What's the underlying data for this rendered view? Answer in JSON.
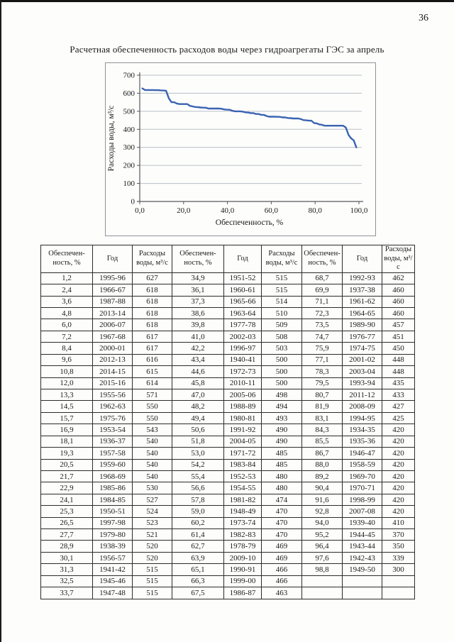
{
  "page": {
    "number": "36",
    "title": "Расчетная обеспеченность расходов воды через гидроагрегаты ГЭС за апрель"
  },
  "chart_data": {
    "type": "line",
    "title": "",
    "xlabel": "Обеспеченность, %",
    "ylabel": "Расходы воды, м³/с",
    "xlim": [
      0,
      100
    ],
    "ylim": [
      0,
      700
    ],
    "xticks": [
      0,
      20,
      40,
      60,
      80,
      100
    ],
    "xtick_labels": [
      "0,0",
      "20,0",
      "40,0",
      "60,0",
      "80,0",
      "100,0"
    ],
    "yticks": [
      0,
      100,
      200,
      300,
      400,
      500,
      600,
      700
    ],
    "ytick_labels": [
      "0",
      "100",
      "200",
      "300",
      "400",
      "500",
      "600",
      "700"
    ],
    "grid": "horizontal",
    "legend": "none",
    "line_color": "#3a63b1",
    "grid_color": "#b7bec8",
    "axis_color": "#55585c",
    "x": [
      1.2,
      2.4,
      3.6,
      4.8,
      6.0,
      7.2,
      8.4,
      9.6,
      10.8,
      12.0,
      13.3,
      14.5,
      15.7,
      16.9,
      18.1,
      19.3,
      20.5,
      21.7,
      22.9,
      24.1,
      25.3,
      26.5,
      27.7,
      28.9,
      30.1,
      31.3,
      32.5,
      33.7,
      34.9,
      36.1,
      37.3,
      38.6,
      39.8,
      41.0,
      42.2,
      43.4,
      44.6,
      45.8,
      47.0,
      48.2,
      49.4,
      50.6,
      51.8,
      53.0,
      54.2,
      55.4,
      56.6,
      57.8,
      59.0,
      60.2,
      61.4,
      62.7,
      63.9,
      65.1,
      66.3,
      67.5,
      68.7,
      69.9,
      71.1,
      72.3,
      73.5,
      74.7,
      75.9,
      77.1,
      78.3,
      79.5,
      80.7,
      81.9,
      83.1,
      84.3,
      85.5,
      86.7,
      88.0,
      89.2,
      90.4,
      91.6,
      92.8,
      94.0,
      95.2,
      96.4,
      97.6,
      98.8
    ],
    "y": [
      627,
      618,
      618,
      618,
      618,
      617,
      617,
      616,
      615,
      614,
      571,
      550,
      550,
      543,
      540,
      540,
      540,
      540,
      530,
      527,
      524,
      523,
      521,
      520,
      520,
      515,
      515,
      515,
      515,
      515,
      514,
      510,
      509,
      508,
      503,
      500,
      500,
      500,
      498,
      494,
      493,
      490,
      490,
      485,
      485,
      480,
      480,
      474,
      470,
      470,
      470,
      469,
      469,
      466,
      466,
      463,
      462,
      460,
      460,
      460,
      457,
      451,
      450,
      448,
      448,
      435,
      433,
      427,
      425,
      420,
      420,
      420,
      420,
      420,
      420,
      420,
      420,
      410,
      370,
      350,
      339,
      300
    ]
  },
  "table": {
    "col_headers": [
      "Обеспечен-\nность, %",
      "Год",
      "Расходы воды, м³/с"
    ],
    "blocks": [
      [
        [
          "1,2",
          "1995-96",
          "627"
        ],
        [
          "2,4",
          "1966-67",
          "618"
        ],
        [
          "3,6",
          "1987-88",
          "618"
        ],
        [
          "4,8",
          "2013-14",
          "618"
        ],
        [
          "6,0",
          "2006-07",
          "618"
        ],
        [
          "7,2",
          "1967-68",
          "617"
        ],
        [
          "8,4",
          "2000-01",
          "617"
        ],
        [
          "9,6",
          "2012-13",
          "616"
        ],
        [
          "10,8",
          "2014-15",
          "615"
        ],
        [
          "12,0",
          "2015-16",
          "614"
        ],
        [
          "13,3",
          "1955-56",
          "571"
        ],
        [
          "14,5",
          "1962-63",
          "550"
        ],
        [
          "15,7",
          "1975-76",
          "550"
        ],
        [
          "16,9",
          "1953-54",
          "543"
        ],
        [
          "18,1",
          "1936-37",
          "540"
        ],
        [
          "19,3",
          "1957-58",
          "540"
        ],
        [
          "20,5",
          "1959-60",
          "540"
        ],
        [
          "21,7",
          "1968-69",
          "540"
        ],
        [
          "22,9",
          "1985-86",
          "530"
        ],
        [
          "24,1",
          "1984-85",
          "527"
        ],
        [
          "25,3",
          "1950-51",
          "524"
        ],
        [
          "26,5",
          "1997-98",
          "523"
        ],
        [
          "27,7",
          "1979-80",
          "521"
        ],
        [
          "28,9",
          "1938-39",
          "520"
        ],
        [
          "30,1",
          "1956-57",
          "520"
        ],
        [
          "31,3",
          "1941-42",
          "515"
        ],
        [
          "32,5",
          "1945-46",
          "515"
        ],
        [
          "33,7",
          "1947-48",
          "515"
        ]
      ],
      [
        [
          "34,9",
          "1951-52",
          "515"
        ],
        [
          "36,1",
          "1960-61",
          "515"
        ],
        [
          "37,3",
          "1965-66",
          "514"
        ],
        [
          "38,6",
          "1963-64",
          "510"
        ],
        [
          "39,8",
          "1977-78",
          "509"
        ],
        [
          "41,0",
          "2002-03",
          "508"
        ],
        [
          "42,2",
          "1996-97",
          "503"
        ],
        [
          "43,4",
          "1940-41",
          "500"
        ],
        [
          "44,6",
          "1972-73",
          "500"
        ],
        [
          "45,8",
          "2010-11",
          "500"
        ],
        [
          "47,0",
          "2005-06",
          "498"
        ],
        [
          "48,2",
          "1988-89",
          "494"
        ],
        [
          "49,4",
          "1980-81",
          "493"
        ],
        [
          "50,6",
          "1991-92",
          "490"
        ],
        [
          "51,8",
          "2004-05",
          "490"
        ],
        [
          "53,0",
          "1971-72",
          "485"
        ],
        [
          "54,2",
          "1983-84",
          "485"
        ],
        [
          "55,4",
          "1952-53",
          "480"
        ],
        [
          "56,6",
          "1954-55",
          "480"
        ],
        [
          "57,8",
          "1981-82",
          "474"
        ],
        [
          "59,0",
          "1948-49",
          "470"
        ],
        [
          "60,2",
          "1973-74",
          "470"
        ],
        [
          "61,4",
          "1982-83",
          "470"
        ],
        [
          "62,7",
          "1978-79",
          "469"
        ],
        [
          "63,9",
          "2009-10",
          "469"
        ],
        [
          "65,1",
          "1990-91",
          "466"
        ],
        [
          "66,3",
          "1999-00",
          "466"
        ],
        [
          "67,5",
          "1986-87",
          "463"
        ]
      ],
      [
        [
          "68,7",
          "1992-93",
          "462"
        ],
        [
          "69,9",
          "1937-38",
          "460"
        ],
        [
          "71,1",
          "1961-62",
          "460"
        ],
        [
          "72,3",
          "1964-65",
          "460"
        ],
        [
          "73,5",
          "1989-90",
          "457"
        ],
        [
          "74,7",
          "1976-77",
          "451"
        ],
        [
          "75,9",
          "1974-75",
          "450"
        ],
        [
          "77,1",
          "2001-02",
          "448"
        ],
        [
          "78,3",
          "2003-04",
          "448"
        ],
        [
          "79,5",
          "1993-94",
          "435"
        ],
        [
          "80,7",
          "2011-12",
          "433"
        ],
        [
          "81,9",
          "2008-09",
          "427"
        ],
        [
          "83,1",
          "1994-95",
          "425"
        ],
        [
          "84,3",
          "1934-35",
          "420"
        ],
        [
          "85,5",
          "1935-36",
          "420"
        ],
        [
          "86,7",
          "1946-47",
          "420"
        ],
        [
          "88,0",
          "1958-59",
          "420"
        ],
        [
          "89,2",
          "1969-70",
          "420"
        ],
        [
          "90,4",
          "1970-71",
          "420"
        ],
        [
          "91,6",
          "1998-99",
          "420"
        ],
        [
          "92,8",
          "2007-08",
          "420"
        ],
        [
          "94,0",
          "1939-40",
          "410"
        ],
        [
          "95,2",
          "1944-45",
          "370"
        ],
        [
          "96,4",
          "1943-44",
          "350"
        ],
        [
          "97,6",
          "1942-43",
          "339"
        ],
        [
          "98,8",
          "1949-50",
          "300"
        ]
      ]
    ]
  }
}
